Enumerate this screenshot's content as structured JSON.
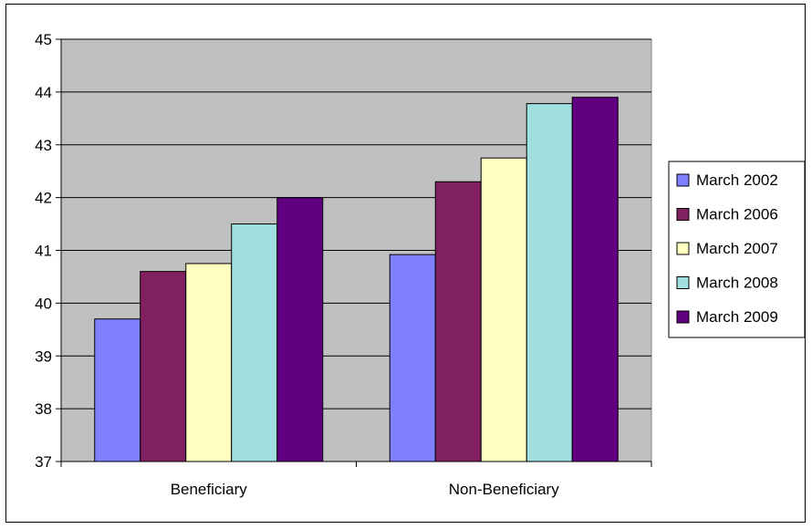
{
  "chart_data": {
    "type": "bar",
    "title": "",
    "xlabel": "",
    "ylabel": "",
    "categories": [
      "Beneficiary",
      "Non-Beneficiary"
    ],
    "ylim": [
      37,
      45
    ],
    "yticks": [
      37,
      38,
      39,
      40,
      41,
      42,
      43,
      44,
      45
    ],
    "grid": true,
    "legend_position": "right",
    "plot_background": "#c0c0c0",
    "series": [
      {
        "name": "March 2002",
        "color": "#8080ff",
        "values": [
          39.7,
          40.92
        ]
      },
      {
        "name": "March 2006",
        "color": "#802060",
        "values": [
          40.6,
          42.3
        ]
      },
      {
        "name": "March 2007",
        "color": "#ffffc0",
        "values": [
          40.75,
          42.75
        ]
      },
      {
        "name": "March 2008",
        "color": "#a0e0e0",
        "values": [
          41.5,
          43.78
        ]
      },
      {
        "name": "March 2009",
        "color": "#600080",
        "values": [
          42.0,
          43.9
        ]
      }
    ]
  }
}
